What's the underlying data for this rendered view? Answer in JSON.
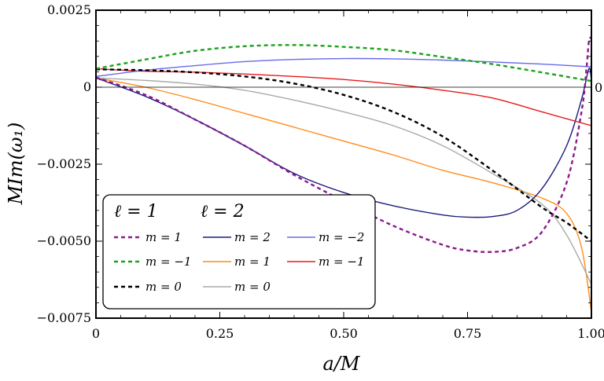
{
  "chart_data": {
    "type": "line",
    "xlabel": "a/M",
    "ylabel": "MIm(ω₁)",
    "xlim": [
      0,
      1.0
    ],
    "ylim": [
      -0.0075,
      0.0025
    ],
    "x_ticks": [
      {
        "value": 0,
        "label": "0"
      },
      {
        "value": 0.25,
        "label": "0.25"
      },
      {
        "value": 0.5,
        "label": "0.50"
      },
      {
        "value": 0.75,
        "label": "0.75"
      },
      {
        "value": 1.0,
        "label": "1.00"
      }
    ],
    "y_ticks": [
      {
        "value": 0.0025,
        "label": "0.0025"
      },
      {
        "value": 0,
        "label": "0"
      },
      {
        "value": -0.0025,
        "label": "−0.0025"
      },
      {
        "value": -0.005,
        "label": "−0.0050"
      },
      {
        "value": -0.0075,
        "label": "−0.0075"
      }
    ],
    "right_zero_label": "0",
    "legend": {
      "placement": "bottom-left",
      "group_headers": [
        "ℓ = 1",
        "ℓ = 2"
      ]
    },
    "series": [
      {
        "name": "m = 1",
        "l": 1,
        "color": "#8b1a8b",
        "dashed": true,
        "x": [
          0,
          0.1,
          0.2,
          0.3,
          0.4,
          0.5,
          0.6,
          0.7,
          0.75,
          0.8,
          0.85,
          0.9,
          0.95,
          0.98,
          0.99,
          0.995,
          1.0
        ],
        "y": [
          0.00032,
          -0.00025,
          -0.00105,
          -0.0019,
          -0.00285,
          -0.0037,
          -0.0045,
          -0.00512,
          -0.0053,
          -0.00535,
          -0.00522,
          -0.0047,
          -0.0031,
          -0.0008,
          0.0006,
          0.0015,
          0.0016
        ]
      },
      {
        "name": "m = −1",
        "l": 1,
        "color": "#1aa31a",
        "dashed": true,
        "x": [
          0,
          0.1,
          0.2,
          0.3,
          0.4,
          0.5,
          0.6,
          0.7,
          0.8,
          0.9,
          1.0
        ],
        "y": [
          0.0006,
          0.0009,
          0.00118,
          0.00133,
          0.00137,
          0.00131,
          0.0012,
          0.00098,
          0.00075,
          0.00048,
          0.0002
        ]
      },
      {
        "name": "m = 0",
        "l": 1,
        "color": "#000000",
        "dashed": true,
        "x": [
          0,
          0.1,
          0.2,
          0.3,
          0.4,
          0.5,
          0.6,
          0.7,
          0.8,
          0.9,
          0.95,
          1.0
        ],
        "y": [
          0.00058,
          0.00055,
          0.00048,
          0.00035,
          0.00012,
          -0.00025,
          -0.0008,
          -0.0016,
          -0.0027,
          -0.0039,
          -0.0044,
          -0.005
        ]
      },
      {
        "name": "m = 2",
        "l": 2,
        "color": "#1a1a7a",
        "dashed": false,
        "x": [
          0,
          0.1,
          0.2,
          0.3,
          0.4,
          0.5,
          0.6,
          0.7,
          0.75,
          0.8,
          0.85,
          0.9,
          0.95,
          0.98,
          0.995,
          1.0
        ],
        "y": [
          0.0003,
          -0.0003,
          -0.00105,
          -0.0019,
          -0.0028,
          -0.00342,
          -0.00385,
          -0.00415,
          -0.00422,
          -0.0042,
          -0.004,
          -0.0033,
          -0.0019,
          -0.0004,
          0.0006,
          0.0002
        ]
      },
      {
        "name": "m = 1",
        "l": 2,
        "color": "#ff8c1a",
        "dashed": false,
        "x": [
          0,
          0.1,
          0.2,
          0.3,
          0.4,
          0.5,
          0.6,
          0.7,
          0.8,
          0.9,
          0.95,
          0.98,
          1.0
        ],
        "y": [
          0.0003,
          0.0,
          -0.0004,
          -0.00085,
          -0.0013,
          -0.00175,
          -0.0022,
          -0.0027,
          -0.0031,
          -0.0036,
          -0.0041,
          -0.0052,
          -0.0073
        ]
      },
      {
        "name": "m = −1",
        "l": 2,
        "color": "#e81a1a",
        "dashed": false,
        "x": [
          0,
          0.1,
          0.2,
          0.3,
          0.4,
          0.5,
          0.6,
          0.7,
          0.8,
          0.9,
          1.0
        ],
        "y": [
          0.0006,
          0.00052,
          0.00049,
          0.00043,
          0.00035,
          0.00025,
          0.0001,
          -0.0001,
          -0.00035,
          -0.0008,
          -0.00125
        ]
      },
      {
        "name": "m = −2",
        "l": 2,
        "color": "#6a6ae8",
        "dashed": false,
        "x": [
          0,
          0.1,
          0.2,
          0.3,
          0.4,
          0.5,
          0.6,
          0.7,
          0.8,
          0.9,
          1.0
        ],
        "y": [
          0.00035,
          0.00055,
          0.0007,
          0.00083,
          0.0009,
          0.00093,
          0.00092,
          0.00088,
          0.00082,
          0.00075,
          0.00066
        ]
      },
      {
        "name": "m = 0",
        "l": 2,
        "color": "#aaaaaa",
        "dashed": false,
        "x": [
          0,
          0.1,
          0.2,
          0.3,
          0.4,
          0.5,
          0.6,
          0.7,
          0.8,
          0.9,
          0.95,
          1.0
        ],
        "y": [
          0.0003,
          0.00022,
          0.0001,
          -0.0001,
          -0.00042,
          -0.0008,
          -0.00125,
          -0.0019,
          -0.0028,
          -0.0038,
          -0.0048,
          -0.0064
        ]
      }
    ]
  }
}
